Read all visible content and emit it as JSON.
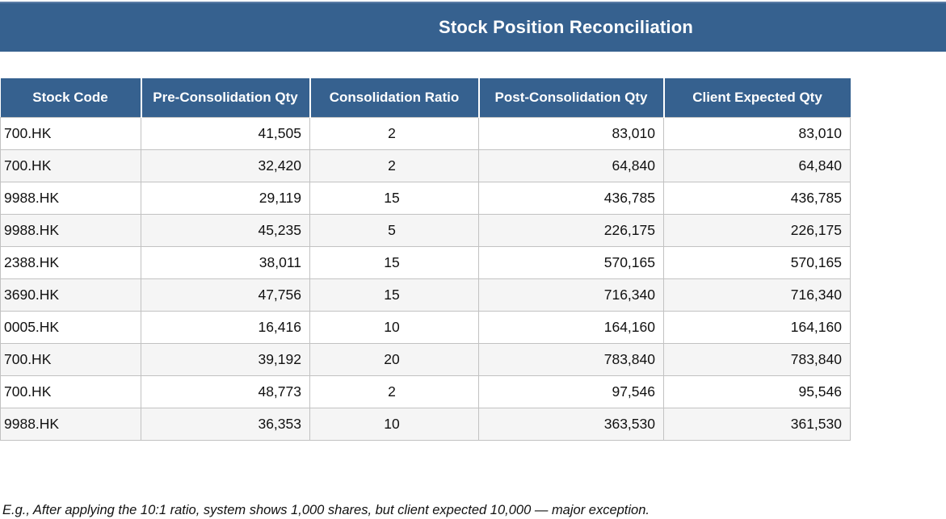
{
  "title": "Stock Position Reconciliation",
  "colors": {
    "banner_blue": "#36618F",
    "header_blue": "#36618F",
    "alt_row_gray": "#F5F5F5",
    "cell_border_gray": "#C2C2C2",
    "header_text": "#FFFFFF",
    "body_text": "#111111"
  },
  "table": {
    "columns": [
      {
        "label": "Stock Code",
        "align": "left"
      },
      {
        "label": "Pre-Consolidation Qty",
        "align": "right"
      },
      {
        "label": "Consolidation Ratio",
        "align": "center"
      },
      {
        "label": "Post-Consolidation Qty",
        "align": "right"
      },
      {
        "label": "Client Expected Qty",
        "align": "right"
      }
    ],
    "rows": [
      [
        "700.HK",
        "41,505",
        "2",
        "83,010",
        "83,010"
      ],
      [
        "700.HK",
        "32,420",
        "2",
        "64,840",
        "64,840"
      ],
      [
        "9988.HK",
        "29,119",
        "15",
        "436,785",
        "436,785"
      ],
      [
        "9988.HK",
        "45,235",
        "5",
        "226,175",
        "226,175"
      ],
      [
        "2388.HK",
        "38,011",
        "15",
        "570,165",
        "570,165"
      ],
      [
        "3690.HK",
        "47,756",
        "15",
        "716,340",
        "716,340"
      ],
      [
        "0005.HK",
        "16,416",
        "10",
        "164,160",
        "164,160"
      ],
      [
        "700.HK",
        "39,192",
        "20",
        "783,840",
        "783,840"
      ],
      [
        "700.HK",
        "48,773",
        "2",
        "97,546",
        "95,546"
      ],
      [
        "9988.HK",
        "36,353",
        "10",
        "363,530",
        "361,530"
      ]
    ]
  },
  "footnote": "E.g., After applying the 10:1 ratio, system shows 1,000 shares, but client expected 10,000 — major exception."
}
